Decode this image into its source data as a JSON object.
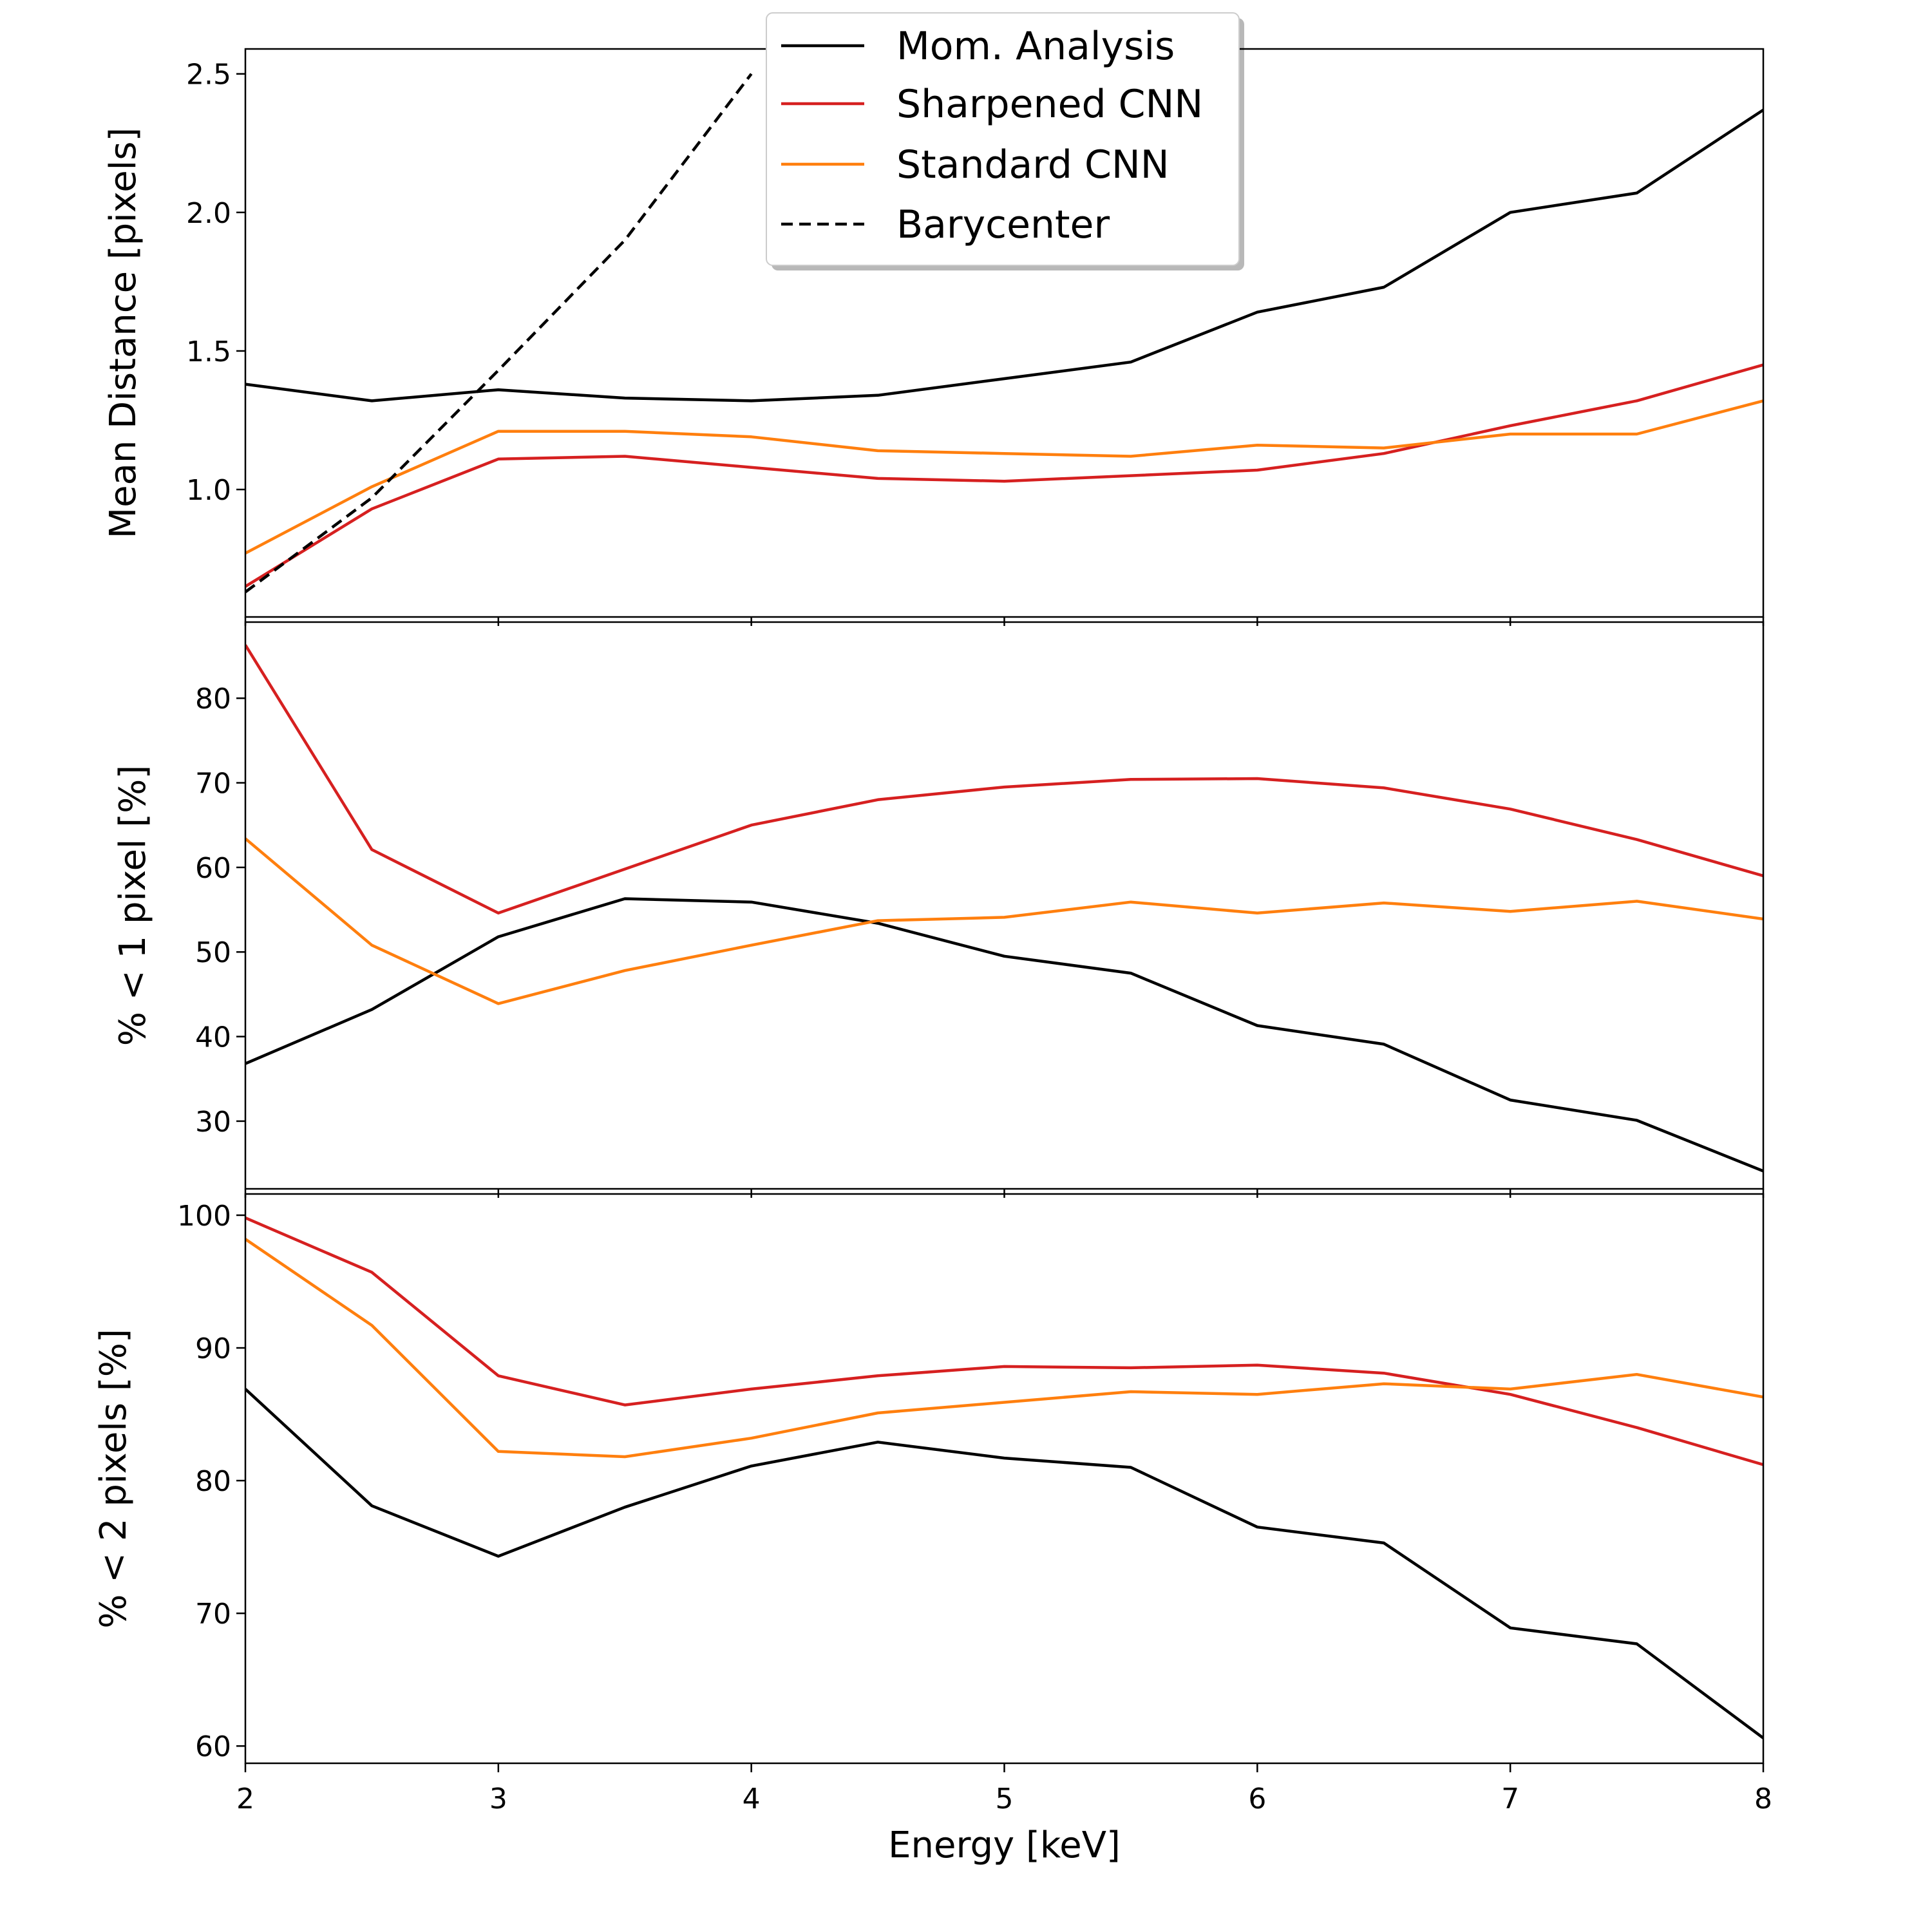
{
  "chart_data": {
    "type": "line",
    "shared_x": {
      "label": "Energy [keV]",
      "range": [
        2,
        8
      ],
      "ticks": [
        2,
        3,
        4,
        5,
        6,
        7,
        8
      ],
      "tick_labels": [
        "2",
        "3",
        "4",
        "5",
        "6",
        "7",
        "8"
      ]
    },
    "legend": {
      "location": "upper-center",
      "entries": [
        {
          "label": "Mom. Analysis",
          "color": "#000000",
          "dash": "solid"
        },
        {
          "label": "Sharpened CNN",
          "color": "#d62020",
          "dash": "solid"
        },
        {
          "label": "Standard CNN",
          "color": "#ff7f0e",
          "dash": "solid"
        },
        {
          "label": "Barycenter",
          "color": "#000000",
          "dash": "dashed"
        }
      ]
    },
    "panels": [
      {
        "ylabel": "Mean Distance [pixels]",
        "ylim": [
          0.54,
          2.59
        ],
        "yticks": [
          1.0,
          1.5,
          2.0,
          2.5
        ],
        "ytick_labels": [
          "1.0",
          "1.5",
          "2.0",
          "2.5"
        ],
        "series": [
          {
            "name": "Mom. Analysis",
            "color": "#000000",
            "dash": "solid",
            "x": [
              2,
              2.5,
              3,
              3.5,
              4,
              4.5,
              5,
              5.5,
              6,
              6.5,
              7,
              7.5,
              8
            ],
            "y": [
              1.38,
              1.32,
              1.36,
              1.33,
              1.32,
              1.34,
              1.4,
              1.46,
              1.64,
              1.73,
              2.0,
              2.07,
              2.37
            ]
          },
          {
            "name": "Sharpened CNN",
            "color": "#d62020",
            "dash": "solid",
            "x": [
              2,
              2.5,
              3,
              3.5,
              4,
              4.5,
              5,
              5.5,
              6,
              6.5,
              7,
              7.5,
              8
            ],
            "y": [
              0.65,
              0.93,
              1.11,
              1.12,
              1.08,
              1.04,
              1.03,
              1.05,
              1.07,
              1.13,
              1.23,
              1.32,
              1.45
            ]
          },
          {
            "name": "Standard CNN",
            "color": "#ff7f0e",
            "dash": "solid",
            "x": [
              2,
              2.5,
              3,
              3.5,
              4,
              4.5,
              5,
              5.5,
              6,
              6.5,
              7,
              7.5,
              8
            ],
            "y": [
              0.77,
              1.01,
              1.21,
              1.21,
              1.19,
              1.14,
              1.13,
              1.12,
              1.16,
              1.15,
              1.2,
              1.2,
              1.32
            ]
          },
          {
            "name": "Barycenter",
            "color": "#000000",
            "dash": "dashed",
            "x": [
              2,
              2.5,
              3,
              3.5,
              4
            ],
            "y": [
              0.63,
              0.97,
              1.43,
              1.9,
              2.5
            ]
          }
        ]
      },
      {
        "ylabel": "% < 1 pixel [%]",
        "ylim": [
          22,
          89
        ],
        "yticks": [
          30,
          40,
          50,
          60,
          70,
          80
        ],
        "ytick_labels": [
          "30",
          "40",
          "50",
          "60",
          "70",
          "80"
        ],
        "series": [
          {
            "name": "Mom. Analysis",
            "color": "#000000",
            "dash": "solid",
            "x": [
              2,
              2.5,
              3,
              3.5,
              4,
              4.5,
              5,
              5.5,
              6,
              6.5,
              7,
              7.5,
              8
            ],
            "y": [
              36.8,
              43.2,
              51.8,
              56.3,
              55.9,
              53.4,
              49.5,
              47.5,
              41.3,
              39.1,
              32.5,
              30.1,
              24.1
            ]
          },
          {
            "name": "Sharpened CNN",
            "color": "#d62020",
            "dash": "solid",
            "x": [
              2,
              2.5,
              3,
              3.5,
              4,
              4.5,
              5,
              5.5,
              6,
              6.5,
              7,
              7.5,
              8
            ],
            "y": [
              86.3,
              62.1,
              54.6,
              59.8,
              65.0,
              68.0,
              69.5,
              70.4,
              70.5,
              69.4,
              66.9,
              63.3,
              59.0
            ]
          },
          {
            "name": "Standard CNN",
            "color": "#ff7f0e",
            "dash": "solid",
            "x": [
              2,
              2.5,
              3,
              3.5,
              4,
              4.5,
              5,
              5.5,
              6,
              6.5,
              7,
              7.5,
              8
            ],
            "y": [
              63.4,
              50.8,
              43.9,
              47.8,
              50.8,
              53.7,
              54.1,
              55.9,
              54.6,
              55.8,
              54.8,
              56.0,
              53.9
            ]
          }
        ]
      },
      {
        "ylabel": "% < 2 pixels [%]",
        "ylim": [
          58.7,
          101.6
        ],
        "yticks": [
          60,
          70,
          80,
          90,
          100
        ],
        "ytick_labels": [
          "60",
          "70",
          "80",
          "90",
          "100"
        ],
        "series": [
          {
            "name": "Mom. Analysis",
            "color": "#000000",
            "dash": "solid",
            "x": [
              2,
              2.5,
              3,
              3.5,
              4,
              4.5,
              5,
              5.5,
              6,
              6.5,
              7,
              7.5,
              8
            ],
            "y": [
              86.9,
              78.1,
              74.3,
              78.0,
              81.1,
              82.9,
              81.7,
              81.0,
              76.5,
              75.3,
              68.9,
              67.7,
              60.6
            ]
          },
          {
            "name": "Sharpened CNN",
            "color": "#d62020",
            "dash": "solid",
            "x": [
              2,
              2.5,
              3,
              3.5,
              4,
              4.5,
              5,
              5.5,
              6,
              6.5,
              7,
              7.5,
              8
            ],
            "y": [
              99.8,
              95.7,
              87.9,
              85.7,
              86.9,
              87.9,
              88.6,
              88.5,
              88.7,
              88.1,
              86.5,
              84.0,
              81.2
            ]
          },
          {
            "name": "Standard CNN",
            "color": "#ff7f0e",
            "dash": "solid",
            "x": [
              2,
              2.5,
              3,
              3.5,
              4,
              4.5,
              5,
              5.5,
              6,
              6.5,
              7,
              7.5,
              8
            ],
            "y": [
              98.2,
              91.7,
              82.2,
              81.8,
              83.2,
              85.1,
              85.9,
              86.7,
              86.5,
              87.3,
              86.9,
              88.0,
              86.3
            ]
          }
        ]
      }
    ]
  }
}
